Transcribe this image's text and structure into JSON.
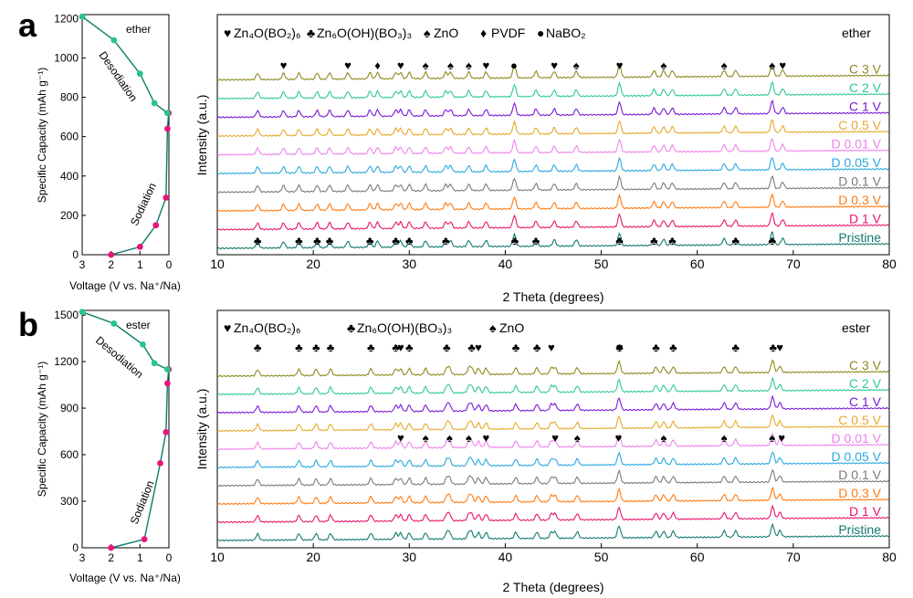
{
  "colors": {
    "C 3 V": "#8b8b1e",
    "C 2 V": "#2ec995",
    "C 1 V": "#7a19d6",
    "C 0.5 V": "#e6a92a",
    "D 0.01 V": "#ee82ee",
    "D 0.05 V": "#29a8e0",
    "D 0.1 V": "#7a7a7a",
    "D 0.3 V": "#ff7a10",
    "D 1 V": "#e8156c",
    "Pristine": "#127a6e",
    "vcurve": "#0b7b6c",
    "desod": "#28c48a",
    "sod": "#e8157a"
  },
  "panels": [
    {
      "letter": "a",
      "electrolyte": "ether",
      "xrd": {
        "xlabel": "2 Theta (degrees)",
        "ylabel": "Intensity (a.u.)",
        "legend": {
          "zn4": "Zn₄O(BO₂)₆",
          "zn6": "Zn₆O(OH)(BO₃)₃",
          "zno": "ZnO",
          "pvdf": "PVDF",
          "nabo": "NaBO₂"
        },
        "marker_rows": [
          {
            "peaks": [
              [
                16.9,
                "♥"
              ],
              [
                23.6,
                "♥"
              ],
              [
                26.7,
                "♦"
              ],
              [
                29.1,
                "♥"
              ],
              [
                31.7,
                "♠"
              ],
              [
                34.3,
                "♠"
              ],
              [
                36.2,
                "♠"
              ],
              [
                38.0,
                "♥"
              ],
              [
                40.9,
                "●"
              ],
              [
                45.1,
                "♥"
              ],
              [
                47.4,
                "♠"
              ],
              [
                51.9,
                "♥"
              ],
              [
                56.5,
                "♠"
              ],
              [
                62.8,
                "♠"
              ],
              [
                67.8,
                "♠"
              ],
              [
                68.9,
                "♥"
              ]
            ]
          },
          {
            "peaks": [
              [
                14.2,
                "♣"
              ],
              [
                18.5,
                "♣"
              ],
              [
                20.4,
                "♣"
              ],
              [
                21.7,
                "♣"
              ],
              [
                25.9,
                "♣"
              ],
              [
                28.6,
                "♣"
              ],
              [
                30.0,
                "♣"
              ],
              [
                33.8,
                "♣"
              ],
              [
                41.0,
                "♣"
              ],
              [
                43.2,
                "♣"
              ],
              [
                51.9,
                "♣"
              ],
              [
                55.5,
                "♣"
              ],
              [
                57.4,
                "♣"
              ],
              [
                64.0,
                "♣"
              ],
              [
                67.8,
                "♣"
              ]
            ]
          }
        ]
      },
      "vcurve": {
        "xlabel": "Voltage (V vs. Na⁺/Na)",
        "ylabel": "Specific Capacity (mAh g⁻¹)",
        "desodiation": "Desodiation",
        "sodiation": "Sodiation"
      }
    },
    {
      "letter": "b",
      "electrolyte": "ester",
      "xrd": {
        "xlabel": "2 Theta (degrees)",
        "ylabel": "Intensity (a.u.)",
        "legend": {
          "zn4": "Zn₄O(BO₂)₆",
          "zn6": "Zn₆O(OH)(BO₃)₃",
          "zno": "ZnO"
        },
        "marker_rows": [
          {
            "peaks": [
              [
                14.2,
                "♣"
              ],
              [
                18.5,
                "♣"
              ],
              [
                20.3,
                "♣"
              ],
              [
                21.8,
                "♣"
              ],
              [
                26.0,
                "♣"
              ],
              [
                28.6,
                "♣"
              ],
              [
                30.0,
                "♣"
              ],
              [
                29.1,
                "♥"
              ],
              [
                33.9,
                "♣"
              ],
              [
                36.5,
                "♣"
              ],
              [
                37.2,
                "♥"
              ],
              [
                41.1,
                "♣"
              ],
              [
                43.3,
                "♣"
              ],
              [
                44.8,
                "♥"
              ],
              [
                51.9,
                "♣"
              ],
              [
                51.9,
                "♥"
              ],
              [
                55.7,
                "♣"
              ],
              [
                57.5,
                "♣"
              ],
              [
                64.0,
                "♣"
              ],
              [
                67.9,
                "♣"
              ],
              [
                68.6,
                "♥"
              ]
            ]
          },
          {
            "peaks": [
              [
                29.1,
                "♥"
              ],
              [
                31.7,
                "♠"
              ],
              [
                34.2,
                "♠"
              ],
              [
                36.2,
                "♠"
              ],
              [
                38.0,
                "♥"
              ],
              [
                45.2,
                "♥"
              ],
              [
                47.5,
                "♠"
              ],
              [
                51.8,
                "♥"
              ],
              [
                56.5,
                "♠"
              ],
              [
                62.8,
                "♠"
              ],
              [
                67.8,
                "♠"
              ],
              [
                68.8,
                "♥"
              ]
            ]
          }
        ]
      },
      "vcurve": {
        "xlabel": "Voltage (V vs. Na⁺/Na)",
        "ylabel": "Specific Capacity (mAh g⁻¹)",
        "desodiation": "Desodiation",
        "sodiation": "Sodiation"
      }
    }
  ],
  "chart_data": [
    {
      "type": "line",
      "title": "",
      "xlabel": "Voltage (V vs. Na⁺/Na)",
      "ylabel": "Specific Capacity (mAh g⁻¹)",
      "xlim": [
        3,
        0
      ],
      "ylim": [
        0,
        1220
      ],
      "x_ticks": [
        3,
        2,
        1,
        0
      ],
      "y_ticks": [
        0,
        200,
        400,
        600,
        800,
        1000,
        1200
      ],
      "series": [
        {
          "name": "Sodiation",
          "x": [
            2.0,
            1.0,
            0.45,
            0.1,
            0.05,
            0.01
          ],
          "y": [
            0,
            40,
            150,
            290,
            640,
            720
          ]
        },
        {
          "name": "Desodiation",
          "x": [
            0.05,
            0.5,
            1.0,
            1.9,
            3.0
          ],
          "y": [
            720,
            770,
            920,
            1090,
            1210
          ]
        }
      ]
    },
    {
      "type": "line",
      "title": "",
      "xlabel": "2 Theta (degrees)",
      "ylabel": "Intensity (a.u.)",
      "xlim": [
        10,
        80
      ],
      "x_ticks": [
        10,
        20,
        30,
        40,
        50,
        60,
        70,
        80
      ],
      "series": [
        {
          "name": "Pristine",
          "offset": 0
        },
        {
          "name": "D 1 V",
          "offset": 1
        },
        {
          "name": "D 0.3 V",
          "offset": 2
        },
        {
          "name": "D 0.1 V",
          "offset": 3
        },
        {
          "name": "D 0.05 V",
          "offset": 4
        },
        {
          "name": "D 0.01 V",
          "offset": 5
        },
        {
          "name": "C 0.5 V",
          "offset": 6
        },
        {
          "name": "C 1 V",
          "offset": 7
        },
        {
          "name": "C 2 V",
          "offset": 8
        },
        {
          "name": "C 3 V",
          "offset": 9
        }
      ],
      "peaks_2theta": {
        "Zn6O(OH)(BO3)3": [
          14.2,
          18.5,
          20.4,
          21.7,
          25.9,
          28.6,
          30.0,
          33.8,
          41.0,
          43.2,
          51.9,
          55.5,
          57.4,
          64.0,
          67.8
        ],
        "Zn4O(BO2)6": [
          16.9,
          23.6,
          29.1,
          38.0,
          45.1,
          51.9,
          68.9
        ],
        "ZnO": [
          31.7,
          34.3,
          36.2,
          47.4,
          56.5,
          62.8,
          67.8
        ],
        "PVDF": [
          26.7
        ],
        "NaBO2": [
          40.9
        ]
      }
    },
    {
      "type": "line",
      "title": "",
      "xlabel": "Voltage (V vs. Na⁺/Na)",
      "ylabel": "Specific Capacity (mAh g⁻¹)",
      "xlim": [
        3,
        0
      ],
      "ylim": [
        0,
        1530
      ],
      "x_ticks": [
        3,
        2,
        1,
        0
      ],
      "y_ticks": [
        0,
        300,
        600,
        900,
        1200,
        1500
      ],
      "series": [
        {
          "name": "Sodiation",
          "x": [
            2.0,
            0.85,
            0.3,
            0.1,
            0.05,
            0.01
          ],
          "y": [
            0,
            55,
            545,
            745,
            1060,
            1150
          ]
        },
        {
          "name": "Desodiation",
          "x": [
            0.05,
            0.5,
            0.9,
            1.9,
            3.0
          ],
          "y": [
            1150,
            1190,
            1310,
            1445,
            1520
          ]
        }
      ]
    },
    {
      "type": "line",
      "title": "",
      "xlabel": "2 Theta (degrees)",
      "ylabel": "Intensity (a.u.)",
      "xlim": [
        10,
        80
      ],
      "x_ticks": [
        10,
        20,
        30,
        40,
        50,
        60,
        70,
        80
      ],
      "series": [
        {
          "name": "Pristine",
          "offset": 0
        },
        {
          "name": "D 1 V",
          "offset": 1
        },
        {
          "name": "D 0.3 V",
          "offset": 2
        },
        {
          "name": "D 0.1 V",
          "offset": 3
        },
        {
          "name": "D 0.05 V",
          "offset": 4
        },
        {
          "name": "D 0.01 V",
          "offset": 5
        },
        {
          "name": "C 0.5 V",
          "offset": 6
        },
        {
          "name": "C 1 V",
          "offset": 7
        },
        {
          "name": "C 2 V",
          "offset": 8
        },
        {
          "name": "C 3 V",
          "offset": 9
        }
      ],
      "peaks_2theta": {
        "Zn6O(OH)(BO3)3": [
          14.2,
          18.5,
          20.3,
          21.8,
          26.0,
          28.6,
          30.0,
          33.9,
          36.5,
          41.1,
          43.3,
          51.9,
          55.7,
          57.5,
          64.0,
          67.9
        ],
        "Zn4O(BO2)6": [
          29.1,
          37.2,
          38.0,
          44.8,
          45.2,
          51.8,
          68.6
        ],
        "ZnO": [
          31.7,
          34.2,
          36.2,
          47.5,
          56.5,
          62.8,
          67.8
        ]
      }
    }
  ]
}
